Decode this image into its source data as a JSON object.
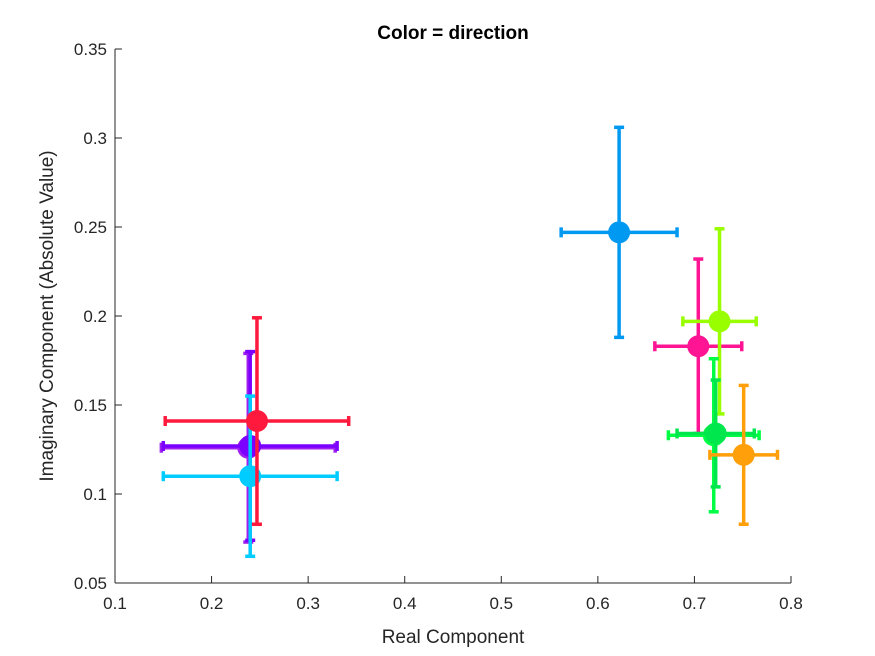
{
  "chart_data": {
    "type": "scatter",
    "title": "Color = direction",
    "xlabel": "Real Component",
    "ylabel": "Imaginary Component (Absolute Value)",
    "xlim": [
      0.1,
      0.8
    ],
    "ylim": [
      0.05,
      0.35
    ],
    "xticks": [
      "0.1",
      "0.2",
      "0.3",
      "0.4",
      "0.5",
      "0.6",
      "0.7",
      "0.8"
    ],
    "yticks": [
      "0.05",
      "0.1",
      "0.15",
      "0.2",
      "0.25",
      "0.3",
      "0.35"
    ],
    "grid": false,
    "points": [
      {
        "x": 0.238,
        "y": 0.126,
        "xerr": 0.09,
        "yerr": 0.053,
        "color": "#a020f0"
      },
      {
        "x": 0.24,
        "y": 0.127,
        "xerr": 0.09,
        "yerr": 0.053,
        "color": "#7b00ff"
      },
      {
        "x": 0.24,
        "y": 0.11,
        "xerr": 0.09,
        "yerr": 0.045,
        "color": "#00ccff"
      },
      {
        "x": 0.247,
        "y": 0.141,
        "xerr": 0.095,
        "yerr": 0.058,
        "color": "#ff1a3d"
      },
      {
        "x": 0.622,
        "y": 0.247,
        "xerr": 0.06,
        "yerr": 0.059,
        "color": "#0099f2"
      },
      {
        "x": 0.704,
        "y": 0.183,
        "xerr": 0.045,
        "yerr": 0.049,
        "color": "#ff1493"
      },
      {
        "x": 0.726,
        "y": 0.197,
        "xerr": 0.038,
        "yerr": 0.052,
        "color": "#99ff00"
      },
      {
        "x": 0.72,
        "y": 0.133,
        "xerr": 0.047,
        "yerr": 0.043,
        "color": "#00ff44"
      },
      {
        "x": 0.722,
        "y": 0.134,
        "xerr": 0.04,
        "yerr": 0.03,
        "color": "#00e64d"
      },
      {
        "x": 0.751,
        "y": 0.122,
        "xerr": 0.035,
        "yerr": 0.039,
        "color": "#ff9f0a"
      }
    ]
  }
}
